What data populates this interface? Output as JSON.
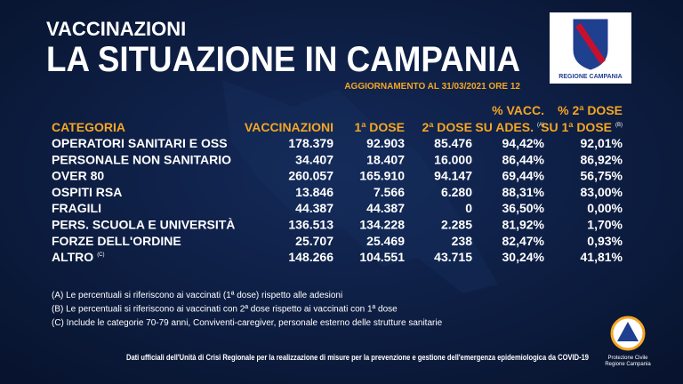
{
  "header": {
    "kicker": "VACCINAZIONI",
    "title": "LA SITUAZIONE IN CAMPANIA",
    "update": "AGGIORNAMENTO AL 31/03/2021 ORE 12"
  },
  "logo": {
    "label": "REGIONE CAMPANIA"
  },
  "table": {
    "columns": [
      {
        "lines": [
          "CATEGORIA"
        ]
      },
      {
        "lines": [
          "VACCINAZIONI"
        ]
      },
      {
        "lines": [
          "1ª DOSE"
        ]
      },
      {
        "lines": [
          "2ª DOSE"
        ]
      },
      {
        "lines": [
          "% VACC.",
          "SU ADES."
        ],
        "note": "(A)"
      },
      {
        "lines": [
          "% 2ª DOSE",
          "SU 1ª DOSE"
        ],
        "note": "(B)"
      }
    ],
    "rows": [
      {
        "cells": [
          "OPERATORI SANITARI E OSS",
          "178.379",
          "92.903",
          "85.476",
          "94,42%",
          "92,01%"
        ]
      },
      {
        "cells": [
          "PERSONALE NON SANITARIO",
          "34.407",
          "18.407",
          "16.000",
          "86,44%",
          "86,92%"
        ]
      },
      {
        "cells": [
          "OVER 80",
          "260.057",
          "165.910",
          "94.147",
          "69,44%",
          "56,75%"
        ]
      },
      {
        "cells": [
          "OSPITI RSA",
          "13.846",
          "7.566",
          "6.280",
          "88,31%",
          "83,00%"
        ]
      },
      {
        "cells": [
          "FRAGILI",
          "44.387",
          "44.387",
          "0",
          "36,50%",
          "0,00%"
        ]
      },
      {
        "cells": [
          "PERS.  SCUOLA E UNIVERSITÀ",
          "136.513",
          "134.228",
          "2.285",
          "81,92%",
          "1,70%"
        ]
      },
      {
        "cells": [
          "FORZE DELL'ORDINE",
          "25.707",
          "25.469",
          "238",
          "82,47%",
          "0,93%"
        ]
      },
      {
        "cells": [
          "ALTRO",
          "148.266",
          "104.551",
          "43.715",
          "30,24%",
          "41,81%"
        ],
        "note": "(C)"
      }
    ]
  },
  "notes": [
    "(A) Le percentuali si riferiscono ai vaccinati (1ª dose) rispetto alle adesioni",
    "(B) Le percentuali si riferiscono ai vaccinati con 2ª dose rispetto ai vaccinati con 1ª dose",
    "(C) Include le categorie 70-79 anni, Conviventi-caregiver, personale esterno delle strutture sanitarie"
  ],
  "footer": "Dati ufficiali dell'Unità di Crisi Regionale per la realizzazione di misure per la prevenzione e gestione dell'emergenza epidemiologica da COVID-19",
  "civil_logo": {
    "lines": [
      "Protezione Civile",
      "Regione Campania"
    ]
  }
}
